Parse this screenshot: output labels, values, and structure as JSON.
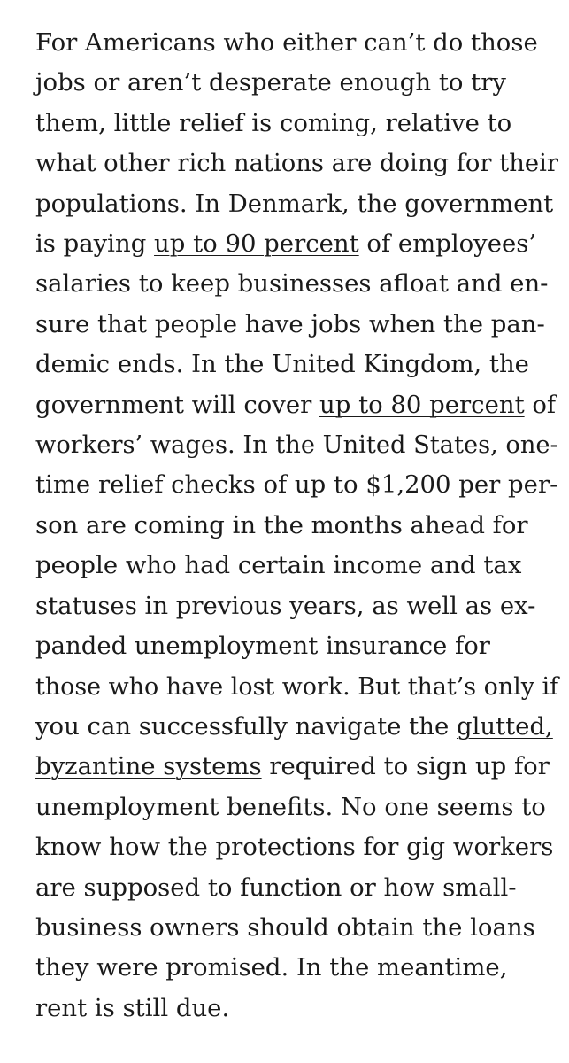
{
  "article": {
    "lines": [
      {
        "text": "For Americans who either can’t do those"
      },
      {
        "text": "jobs or aren’t desperate enough to try"
      },
      {
        "text": "them, little relief is coming, relative to"
      },
      {
        "text": "what other rich nations are doing for their"
      },
      {
        "text": "populations. In Denmark, the government"
      },
      {
        "pre": "is paying ",
        "link": "up to 90 percent",
        "post": " of employees’"
      },
      {
        "text": "salaries to keep businesses afloat and en-"
      },
      {
        "text": "sure that people have jobs when the pan-"
      },
      {
        "text": "demic ends. In the United Kingdom, the"
      },
      {
        "pre": "government will cover ",
        "link": "up to 80 percent",
        "post": " of"
      },
      {
        "text": "workers’ wages. In the United States, one-"
      },
      {
        "text": "time relief checks of up to $1,200 per per-"
      },
      {
        "text": "son are coming in the months ahead for"
      },
      {
        "text": "people who had certain income and tax"
      },
      {
        "text": "statuses in previous years, as well as ex-"
      },
      {
        "text": "panded unemployment insurance for"
      },
      {
        "text": "those who have lost work. But that’s only if"
      },
      {
        "pre": "you can successfully navigate the ",
        "link": "glutted,",
        "post": ""
      },
      {
        "pre": "",
        "link": "byzantine systems",
        "post": " required to sign up for"
      },
      {
        "text": "unemployment benefits. No one seems to"
      },
      {
        "text": "know how the protections for gig workers"
      },
      {
        "text": "are supposed to function or how small-"
      },
      {
        "text": "business owners should obtain the loans"
      },
      {
        "text": "they were promised. In the meantime,"
      },
      {
        "text": "rent is still due."
      }
    ]
  }
}
